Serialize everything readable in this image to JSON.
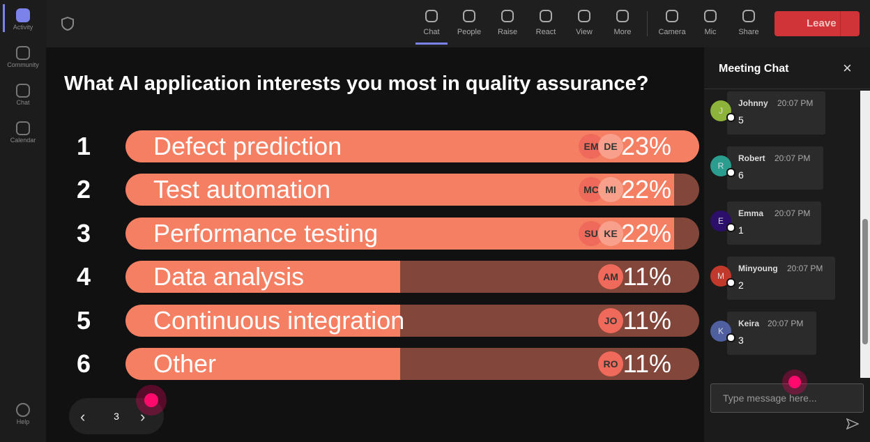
{
  "sidebar": {
    "items": [
      "Activity",
      "Community",
      "Chat",
      "Calendar"
    ],
    "help": "Help"
  },
  "toolbar": {
    "items": [
      "Chat",
      "People",
      "Raise",
      "React",
      "View",
      "More",
      "Camera",
      "Mic",
      "Share"
    ],
    "leave": "Leave"
  },
  "poll": {
    "question": "What AI application interests you most in quality assurance?",
    "options": [
      {
        "rank": 1,
        "label": "Defect prediction",
        "value": 23,
        "value_label": "23%",
        "voters": [
          "EM",
          "DE"
        ]
      },
      {
        "rank": 2,
        "label": "Test automation",
        "value": 22,
        "value_label": "22%",
        "voters": [
          "MC",
          "MI"
        ]
      },
      {
        "rank": 3,
        "label": "Performance testing",
        "value": 22,
        "value_label": "22%",
        "voters": [
          "SU",
          "KE"
        ]
      },
      {
        "rank": 4,
        "label": "Data analysis",
        "value": 11,
        "value_label": "11%",
        "voters": [
          "AM"
        ]
      },
      {
        "rank": 5,
        "label": "Continuous integration",
        "value": 11,
        "value_label": "11%",
        "voters": [
          "JO"
        ]
      },
      {
        "rank": 6,
        "label": "Other",
        "value": 11,
        "value_label": "11%",
        "voters": [
          "RO"
        ]
      }
    ]
  },
  "pager": {
    "page": 3
  },
  "chat": {
    "title": "Meeting Chat",
    "messages": [
      {
        "initial": "J",
        "name": "Johnny",
        "time": "20:07 PM",
        "text": "5",
        "color": "#8db33a"
      },
      {
        "initial": "R",
        "name": "Robert",
        "time": "20:07 PM",
        "text": "6",
        "color": "#2a9d8f"
      },
      {
        "initial": "E",
        "name": "Emma",
        "time": "20:07 PM",
        "text": "1",
        "color": "#2b0f6b"
      },
      {
        "initial": "M",
        "name": "Minyoung",
        "time": "20:07 PM",
        "text": "2",
        "color": "#c0392b"
      },
      {
        "initial": "K",
        "name": "Keira",
        "time": "20:07 PM",
        "text": "3",
        "color": "#4f5fa0"
      }
    ],
    "input_placeholder": "Type message here..."
  }
}
